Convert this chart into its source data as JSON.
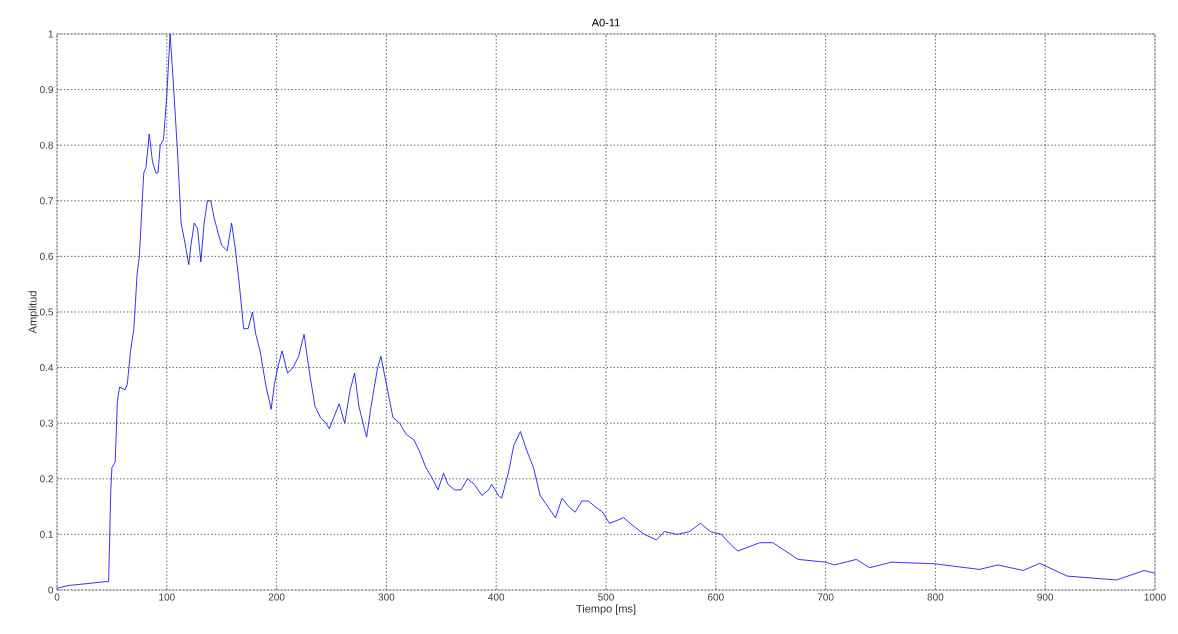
{
  "chart_data": {
    "type": "line",
    "title": "A0-11",
    "xlabel": "Tiempo [ms]",
    "ylabel": "Amplitud",
    "xlim": [
      0,
      1000
    ],
    "ylim": [
      0,
      1
    ],
    "xticks": [
      0,
      100,
      200,
      300,
      400,
      500,
      600,
      700,
      800,
      900,
      1000
    ],
    "yticks": [
      0,
      0.1,
      0.2,
      0.3,
      0.4,
      0.5,
      0.6,
      0.7,
      0.8,
      0.9,
      1
    ],
    "grid": true,
    "series": [
      {
        "color": "#0000ff",
        "x": [
          0,
          10,
          30,
          44,
          47,
          49,
          50,
          53,
          55,
          57,
          62,
          64,
          67,
          70,
          73,
          75,
          79,
          81,
          84,
          87,
          90,
          92,
          94,
          97,
          100,
          103,
          106,
          110,
          113,
          116,
          120,
          122,
          125,
          128,
          131,
          134,
          137,
          140,
          143,
          147,
          150,
          155,
          159,
          162,
          166,
          170,
          174,
          178,
          181,
          185,
          190,
          195,
          198,
          201,
          205,
          210,
          215,
          220,
          225,
          230,
          235,
          240,
          245,
          248,
          252,
          257,
          262,
          267,
          271,
          275,
          280,
          282,
          286,
          292,
          295,
          300,
          306,
          312,
          318,
          325,
          330,
          336,
          342,
          347,
          352,
          356,
          362,
          368,
          374,
          380,
          387,
          393,
          396,
          402,
          405,
          411,
          416,
          422,
          428,
          434,
          440,
          447,
          454,
          460,
          466,
          472,
          478,
          484,
          490,
          497,
          503,
          510,
          516,
          525,
          535,
          546,
          553,
          565,
          576,
          586,
          595,
          605,
          612,
          620,
          640,
          652,
          675,
          700,
          708,
          728,
          740,
          760,
          800,
          840,
          857,
          880,
          895,
          920,
          965,
          990,
          1000
        ],
        "values": [
          0.003,
          0.008,
          0.012,
          0.015,
          0.015,
          0.18,
          0.22,
          0.23,
          0.34,
          0.365,
          0.36,
          0.37,
          0.43,
          0.47,
          0.57,
          0.6,
          0.75,
          0.76,
          0.82,
          0.77,
          0.75,
          0.75,
          0.8,
          0.81,
          0.89,
          1.0,
          0.91,
          0.78,
          0.66,
          0.63,
          0.585,
          0.62,
          0.66,
          0.65,
          0.59,
          0.66,
          0.7,
          0.7,
          0.67,
          0.64,
          0.62,
          0.61,
          0.66,
          0.62,
          0.55,
          0.47,
          0.47,
          0.5,
          0.46,
          0.43,
          0.37,
          0.325,
          0.37,
          0.4,
          0.43,
          0.39,
          0.4,
          0.42,
          0.46,
          0.39,
          0.33,
          0.31,
          0.3,
          0.29,
          0.31,
          0.335,
          0.3,
          0.36,
          0.39,
          0.33,
          0.29,
          0.275,
          0.33,
          0.4,
          0.42,
          0.37,
          0.31,
          0.3,
          0.28,
          0.27,
          0.25,
          0.22,
          0.2,
          0.18,
          0.21,
          0.19,
          0.18,
          0.18,
          0.2,
          0.19,
          0.17,
          0.18,
          0.19,
          0.17,
          0.165,
          0.21,
          0.26,
          0.285,
          0.25,
          0.22,
          0.17,
          0.15,
          0.13,
          0.165,
          0.15,
          0.14,
          0.16,
          0.16,
          0.15,
          0.14,
          0.12,
          0.125,
          0.13,
          0.115,
          0.1,
          0.09,
          0.105,
          0.1,
          0.105,
          0.12,
          0.105,
          0.1,
          0.085,
          0.07,
          0.085,
          0.085,
          0.055,
          0.05,
          0.045,
          0.055,
          0.04,
          0.05,
          0.047,
          0.037,
          0.045,
          0.035,
          0.048,
          0.025,
          0.018,
          0.035,
          0.03
        ]
      }
    ]
  }
}
